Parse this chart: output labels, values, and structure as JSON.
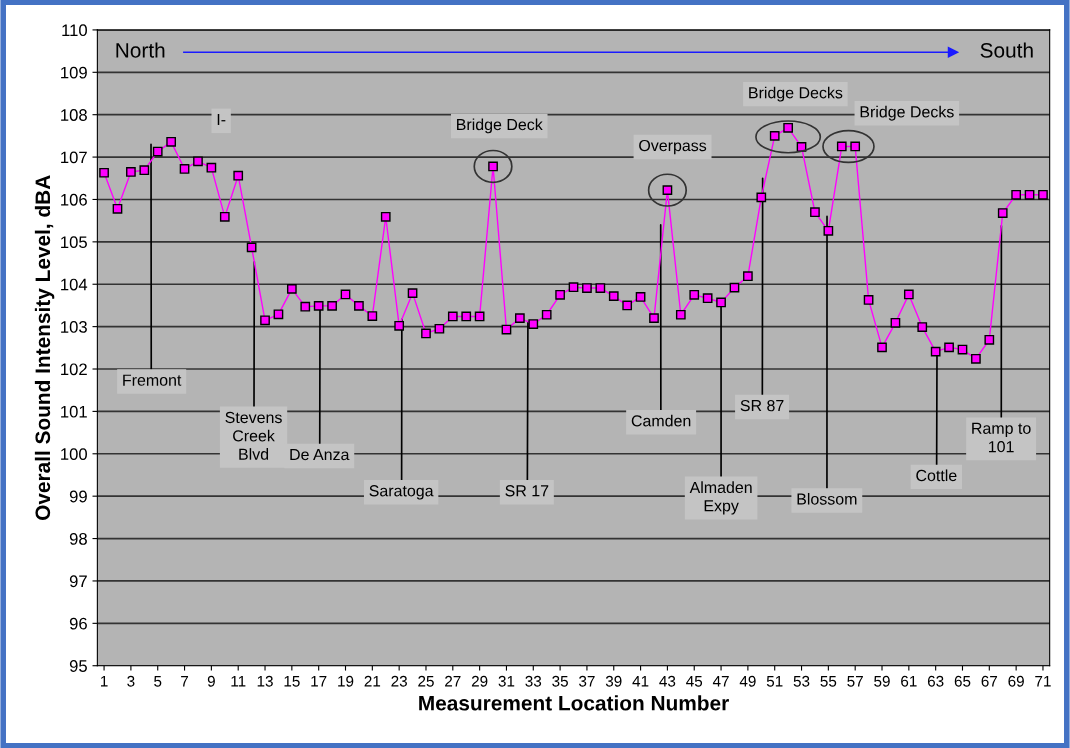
{
  "chart_data": {
    "type": "line",
    "xlabel": "Measurement Location Number",
    "ylabel": "Overall Sound Intensity Level, dBA",
    "x": [
      1,
      2,
      3,
      4,
      5,
      6,
      7,
      8,
      9,
      10,
      11,
      12,
      13,
      14,
      15,
      16,
      17,
      18,
      19,
      20,
      21,
      22,
      23,
      24,
      25,
      26,
      27,
      28,
      29,
      30,
      31,
      32,
      33,
      34,
      35,
      36,
      37,
      38,
      39,
      40,
      41,
      42,
      43,
      44,
      45,
      46,
      47,
      48,
      49,
      50,
      51,
      52,
      53,
      54,
      55,
      56,
      57,
      58,
      59,
      60,
      61,
      62,
      63,
      64,
      65,
      66,
      67,
      68,
      69,
      70,
      71
    ],
    "series": [
      {
        "color": "#ff00ff",
        "values": [
          106.63,
          105.78,
          106.65,
          106.69,
          107.13,
          107.36,
          106.72,
          106.9,
          106.75,
          105.59,
          106.56,
          104.87,
          103.15,
          103.29,
          103.89,
          103.47,
          103.49,
          103.49,
          103.76,
          103.49,
          103.25,
          105.59,
          103.02,
          103.79,
          102.84,
          102.95,
          103.24,
          103.24,
          103.24,
          106.78,
          102.93,
          103.2,
          103.06,
          103.28,
          103.75,
          103.93,
          103.91,
          103.91,
          103.72,
          103.5,
          103.7,
          103.2,
          106.22,
          103.28,
          103.75,
          103.67,
          103.57,
          103.92,
          104.19,
          106.05,
          107.5,
          107.69,
          107.24,
          105.7,
          105.26,
          107.25,
          107.25,
          103.63,
          102.51,
          103.09,
          103.76,
          102.99,
          102.41,
          102.51,
          102.46,
          102.24,
          102.69,
          105.68,
          106.11,
          106.11,
          106.11
        ]
      }
    ],
    "xlim": [
      0.5,
      71.5
    ],
    "xticks": [
      1,
      3,
      5,
      7,
      9,
      11,
      13,
      15,
      17,
      19,
      21,
      23,
      25,
      27,
      29,
      31,
      33,
      35,
      37,
      39,
      41,
      43,
      45,
      47,
      49,
      51,
      53,
      55,
      57,
      59,
      61,
      63,
      65,
      67,
      69,
      71
    ],
    "ylim": [
      95,
      110
    ],
    "yticks": [
      95,
      96,
      97,
      98,
      99,
      100,
      101,
      102,
      103,
      104,
      105,
      106,
      107,
      108,
      109,
      110
    ],
    "grid": "y",
    "marker": "square",
    "line_style": "solid",
    "annotations": [
      "North",
      "South",
      "I-",
      "Bridge Deck",
      "Overpass",
      "Bridge Decks",
      "Bridge Decks",
      {
        "text": "Fremont",
        "x": 4.5,
        "y": 107.3
      },
      {
        "text": "Stevens\nCreek\nBlvd",
        "x": 12.2,
        "y": 104.53
      },
      {
        "text": "De Anza",
        "x": 17.1,
        "y": 103.49
      },
      {
        "text": "Saratoga",
        "x": 23.2,
        "y": 103.17
      },
      {
        "text": "SR 17",
        "x": 32.6,
        "y": 103.12
      },
      {
        "text": "Camden",
        "x": 42.5,
        "y": 105.4
      },
      {
        "text": "Almaden\nExpy",
        "x": 47.0,
        "y": 103.57
      },
      {
        "text": "SR 87",
        "x": 50.1,
        "y": 106.5
      },
      {
        "text": "Blossom",
        "x": 54.9,
        "y": 105.6
      },
      {
        "text": "Cottle",
        "x": 63.1,
        "y": 102.42
      },
      {
        "text": "Ramp to\n101",
        "x": 67.9,
        "y": 105.38
      }
    ]
  }
}
